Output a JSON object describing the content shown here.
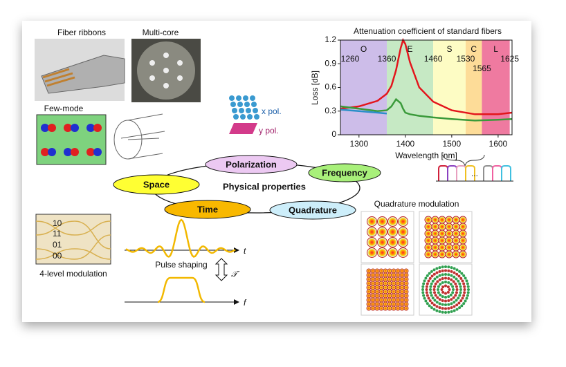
{
  "labels": {
    "fiber_ribbons": "Fiber ribbons",
    "multi_core": "Multi-core",
    "few_mode": "Few-mode",
    "x_pol": "x pol.",
    "y_pol": "y pol.",
    "four_level": "4-level modulation",
    "levels": [
      "10",
      "11",
      "01",
      "00"
    ],
    "pulse_shaping": "Pulse shaping",
    "t_axis": "t",
    "f_axis": "f",
    "transform": "𝒯",
    "quadrature_modulation": "Quadrature modulation",
    "channel_dots": "..."
  },
  "properties": {
    "center": "Physical properties",
    "nodes": [
      "Polarization",
      "Frequency",
      "Space",
      "Time",
      "Quadrature"
    ]
  },
  "chart_data": {
    "type": "line",
    "title": "Attenuation  coefficient of standard fibers",
    "xlabel": "Wavelength [nm]",
    "ylabel": "Loss [dB]",
    "xlim": [
      1260,
      1630
    ],
    "ylim": [
      0,
      1.2
    ],
    "xticks": [
      1300,
      1400,
      1500,
      1600
    ],
    "yticks": [
      0,
      0.3,
      0.6,
      0.9,
      1.2
    ],
    "bands": [
      {
        "name": "O",
        "start": 1260,
        "end": 1360,
        "color": "#cdbde9"
      },
      {
        "name": "E",
        "start": 1360,
        "end": 1460,
        "color": "#c6e9c4"
      },
      {
        "name": "S",
        "start": 1460,
        "end": 1530,
        "color": "#fdfcc4"
      },
      {
        "name": "C",
        "start": 1530,
        "end": 1565,
        "color": "#fddc98"
      },
      {
        "name": "L",
        "start": 1565,
        "end": 1625,
        "color": "#ef7aa0"
      }
    ],
    "x": [
      1260,
      1300,
      1340,
      1360,
      1370,
      1380,
      1390,
      1395,
      1400,
      1410,
      1430,
      1460,
      1500,
      1550,
      1600,
      1630
    ],
    "series": [
      {
        "name": "red",
        "color": "#e3151c",
        "values": [
          0.33,
          0.36,
          0.43,
          0.52,
          0.62,
          0.82,
          1.1,
          1.2,
          1.15,
          0.92,
          0.6,
          0.42,
          0.31,
          0.26,
          0.26,
          0.28
        ]
      },
      {
        "name": "green",
        "color": "#3a9a3a",
        "values": [
          0.36,
          0.33,
          0.3,
          0.31,
          0.36,
          0.45,
          0.4,
          0.33,
          0.28,
          0.26,
          0.24,
          0.22,
          0.2,
          0.18,
          0.19,
          0.2
        ]
      },
      {
        "name": "blue",
        "color": "#2a8fc8",
        "values": [
          0.32,
          0.3,
          0.28,
          0.27,
          null,
          null,
          null,
          null,
          null,
          null,
          null,
          null,
          null,
          null,
          null,
          null
        ]
      }
    ]
  }
}
